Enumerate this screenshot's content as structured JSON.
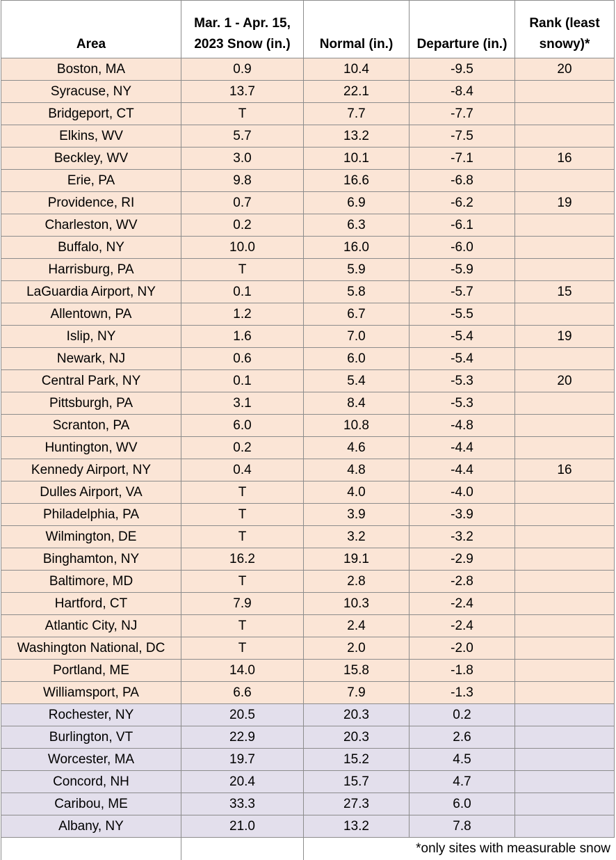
{
  "table": {
    "header": [
      [
        "Area"
      ],
      [
        "Mar. 1 - Apr. 15,",
        "2023 Snow (in.)"
      ],
      [
        "Normal (in.)"
      ],
      [
        "Departure (in.)"
      ],
      [
        "Rank (least",
        "snowy)*"
      ]
    ],
    "rows": [
      [
        "Boston, MA",
        "0.9",
        "10.4",
        "-9.5",
        "20"
      ],
      [
        "Syracuse, NY",
        "13.7",
        "22.1",
        "-8.4",
        null
      ],
      [
        "Bridgeport, CT",
        "T",
        "7.7",
        "-7.7",
        null
      ],
      [
        "Elkins, WV",
        "5.7",
        "13.2",
        "-7.5",
        null
      ],
      [
        "Beckley, WV",
        "3.0",
        "10.1",
        "-7.1",
        "16"
      ],
      [
        "Erie, PA",
        "9.8",
        "16.6",
        "-6.8",
        null
      ],
      [
        "Providence, RI",
        "0.7",
        "6.9",
        "-6.2",
        "19"
      ],
      [
        "Charleston, WV",
        "0.2",
        "6.3",
        "-6.1",
        null
      ],
      [
        "Buffalo, NY",
        "10.0",
        "16.0",
        "-6.0",
        null
      ],
      [
        "Harrisburg, PA",
        "T",
        "5.9",
        "-5.9",
        null
      ],
      [
        "LaGuardia Airport, NY",
        "0.1",
        "5.8",
        "-5.7",
        "15"
      ],
      [
        "Allentown, PA",
        "1.2",
        "6.7",
        "-5.5",
        null
      ],
      [
        "Islip, NY",
        "1.6",
        "7.0",
        "-5.4",
        "19"
      ],
      [
        "Newark, NJ",
        "0.6",
        "6.0",
        "-5.4",
        null
      ],
      [
        "Central Park, NY",
        "0.1",
        "5.4",
        "-5.3",
        "20"
      ],
      [
        "Pittsburgh, PA",
        "3.1",
        "8.4",
        "-5.3",
        null
      ],
      [
        "Scranton, PA",
        "6.0",
        "10.8",
        "-4.8",
        null
      ],
      [
        "Huntington, WV",
        "0.2",
        "4.6",
        "-4.4",
        null
      ],
      [
        "Kennedy Airport, NY",
        "0.4",
        "4.8",
        "-4.4",
        "16"
      ],
      [
        "Dulles Airport, VA",
        "T",
        "4.0",
        "-4.0",
        null
      ],
      [
        "Philadelphia, PA",
        "T",
        "3.9",
        "-3.9",
        null
      ],
      [
        "Wilmington, DE",
        "T",
        "3.2",
        "-3.2",
        null
      ],
      [
        "Binghamton, NY",
        "16.2",
        "19.1",
        "-2.9",
        null
      ],
      [
        "Baltimore, MD",
        "T",
        "2.8",
        "-2.8",
        null
      ],
      [
        "Hartford, CT",
        "7.9",
        "10.3",
        "-2.4",
        null
      ],
      [
        "Atlantic City, NJ",
        "T",
        "2.4",
        "-2.4",
        null
      ],
      [
        "Washington National, DC",
        "T",
        "2.0",
        "-2.0",
        null
      ],
      [
        "Portland, ME",
        "14.0",
        "15.8",
        "-1.8",
        null
      ],
      [
        "Williamsport, PA",
        "6.6",
        "7.9",
        "-1.3",
        null
      ],
      [
        "Rochester, NY",
        "20.5",
        "20.3",
        "0.2",
        null
      ],
      [
        "Burlington, VT",
        "22.9",
        "20.3",
        "2.6",
        null
      ],
      [
        "Worcester, MA",
        "19.7",
        "15.2",
        "4.5",
        null
      ],
      [
        "Concord, NH",
        "20.4",
        "15.7",
        "4.7",
        null
      ],
      [
        "Caribou, ME",
        "33.3",
        "27.3",
        "6.0",
        null
      ],
      [
        "Albany, NY",
        "21.0",
        "13.2",
        "7.8",
        null
      ]
    ],
    "footnote": "*only sites with measurable snow",
    "colors": {
      "below_normal": "#fbe5d6",
      "above_normal": "#e3dfec"
    }
  }
}
